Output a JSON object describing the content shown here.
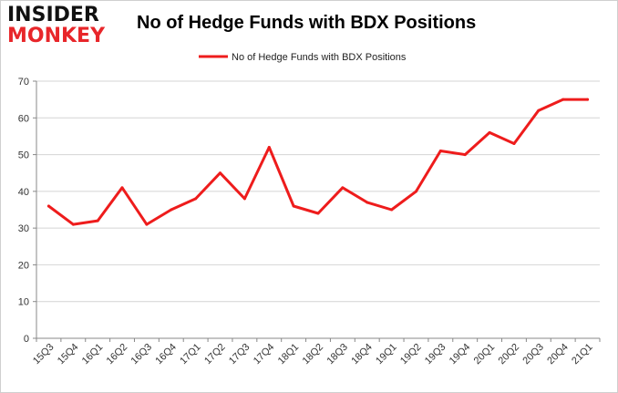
{
  "logo": {
    "line1": "INSIDER",
    "line2": "MONKEY"
  },
  "chart_data": {
    "type": "line",
    "title": "No of Hedge Funds with BDX Positions",
    "xlabel": "",
    "ylabel": "",
    "ylim": [
      0,
      70
    ],
    "yticks": [
      0,
      10,
      20,
      30,
      40,
      50,
      60,
      70
    ],
    "grid": true,
    "legend_position": "top-center",
    "categories": [
      "15Q3",
      "15Q4",
      "16Q1",
      "16Q2",
      "16Q3",
      "16Q4",
      "17Q1",
      "17Q2",
      "17Q3",
      "17Q4",
      "18Q1",
      "18Q2",
      "18Q3",
      "18Q4",
      "19Q1",
      "19Q2",
      "19Q3",
      "19Q4",
      "20Q1",
      "20Q2",
      "20Q3",
      "20Q4",
      "21Q1"
    ],
    "series": [
      {
        "name": "No of Hedge Funds with BDX Positions",
        "color": "#ee1c1c",
        "values": [
          36,
          31,
          32,
          41,
          31,
          35,
          38,
          45,
          38,
          52,
          36,
          34,
          41,
          37,
          35,
          40,
          51,
          50,
          56,
          53,
          62,
          65,
          65
        ]
      }
    ]
  }
}
